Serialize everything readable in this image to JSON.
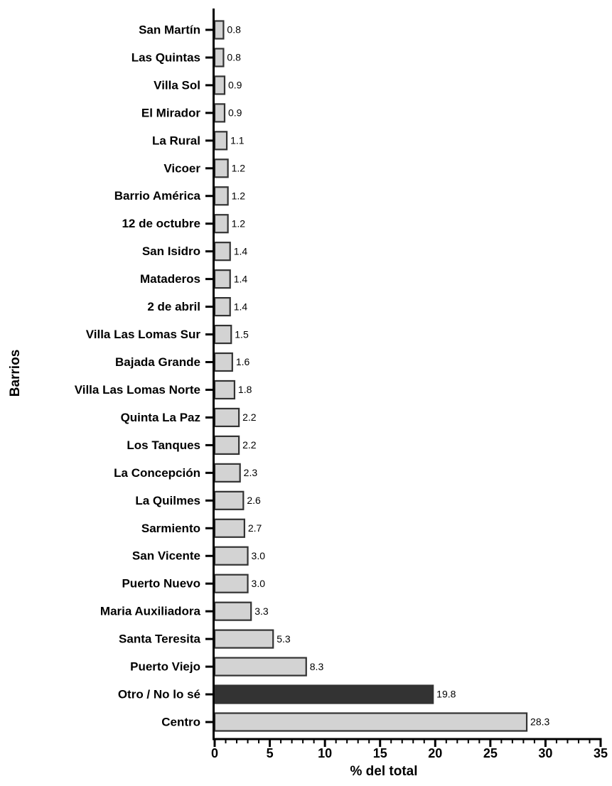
{
  "chart_data": {
    "type": "barh",
    "xlabel": "% del total",
    "ylabel": "Barrios",
    "categories": [
      "San Martín",
      "Las Quintas",
      "Villa Sol",
      "El Mirador",
      "La Rural",
      "Vicoer",
      "Barrio América",
      "12 de octubre",
      "San Isidro",
      "Mataderos",
      "2 de abril",
      "Villa Las Lomas Sur",
      "Bajada Grande",
      "Villa Las Lomas Norte",
      "Quinta La Paz",
      "Los Tanques",
      "La Concepción",
      "La Quilmes",
      "Sarmiento",
      "San Vicente",
      "Puerto Nuevo",
      "Maria Auxiliadora",
      "Santa Teresita",
      "Puerto Viejo",
      "Otro / No lo sé",
      "Centro"
    ],
    "values": [
      0.8,
      0.8,
      0.9,
      0.9,
      1.1,
      1.2,
      1.2,
      1.2,
      1.4,
      1.4,
      1.4,
      1.5,
      1.6,
      1.8,
      2.2,
      2.2,
      2.3,
      2.6,
      2.7,
      3.0,
      3.0,
      3.3,
      5.3,
      8.3,
      19.8,
      28.3
    ],
    "value_labels": [
      "0.8",
      "0.8",
      "0.9",
      "0.9",
      "1.1",
      "1.2",
      "1.2",
      "1.2",
      "1.4",
      "1.4",
      "1.4",
      "1.5",
      "1.6",
      "1.8",
      "2.2",
      "2.2",
      "2.3",
      "2.6",
      "2.7",
      "3.0",
      "3.0",
      "3.3",
      "5.3",
      "8.3",
      "19.8",
      "28.3"
    ],
    "colors": [
      "#d3d3d3",
      "#d3d3d3",
      "#d3d3d3",
      "#d3d3d3",
      "#d3d3d3",
      "#d3d3d3",
      "#d3d3d3",
      "#d3d3d3",
      "#d3d3d3",
      "#d3d3d3",
      "#d3d3d3",
      "#d3d3d3",
      "#d3d3d3",
      "#d3d3d3",
      "#d3d3d3",
      "#d3d3d3",
      "#d3d3d3",
      "#d3d3d3",
      "#d3d3d3",
      "#d3d3d3",
      "#d3d3d3",
      "#d3d3d3",
      "#d3d3d3",
      "#d3d3d3",
      "#333333",
      "#d3d3d3"
    ],
    "xlim": [
      0,
      35
    ],
    "xticks": [
      0,
      5,
      10,
      15,
      20,
      25,
      30,
      35
    ],
    "xminorticks": [
      1,
      2,
      3,
      4,
      6,
      7,
      8,
      9,
      11,
      12,
      13,
      14,
      16,
      17,
      18,
      19,
      21,
      22,
      23,
      24,
      26,
      27,
      28,
      29,
      31,
      32,
      33,
      34
    ]
  }
}
